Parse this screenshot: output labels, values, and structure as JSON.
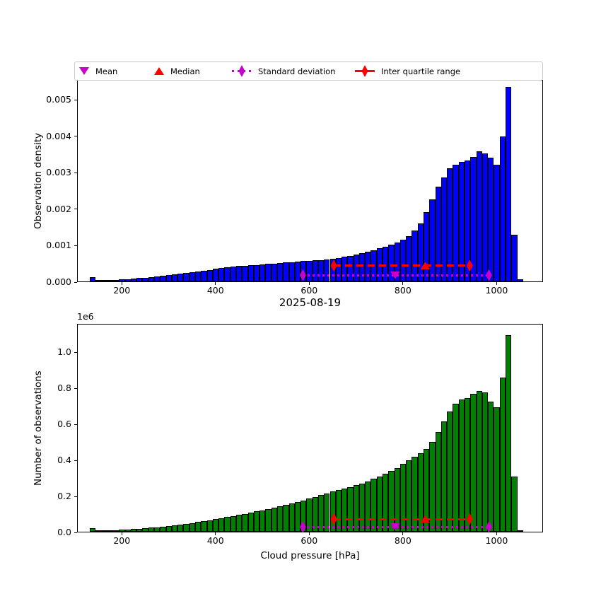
{
  "figure": {
    "title": "2025-08-19",
    "xlabel": "Cloud pressure [hPa]",
    "background": "#ffffff"
  },
  "colors": {
    "top_bar": "#0000ff",
    "bottom_bar": "#008000",
    "bar_edge": "#000000",
    "mean": "#c800c8",
    "median": "#ff0000",
    "std": "#c800c8",
    "iqr": "#ff0000"
  },
  "legend": {
    "items": [
      {
        "label": "Mean",
        "marker": "magenta-down-triangle"
      },
      {
        "label": "Median",
        "marker": "red-up-triangle"
      },
      {
        "label": "Standard deviation",
        "marker": "magenta-diamond-dotted-line"
      },
      {
        "label": "Inter quartile range",
        "marker": "red-diamond-solid-line"
      }
    ]
  },
  "chart_data": [
    {
      "type": "bar",
      "subtype": "histogram",
      "ylabel": "Observation density",
      "xlabel": "",
      "bar_color": "#0000ff",
      "bins": {
        "start": 130,
        "width": 12.5
      },
      "values": [
        0.00012,
        1e-05,
        2e-05,
        3e-05,
        4e-05,
        5e-05,
        6e-05,
        7e-05,
        9e-05,
        0.0001,
        0.00012,
        0.00014,
        0.00016,
        0.00018,
        0.0002,
        0.00022,
        0.00024,
        0.00026,
        0.00028,
        0.0003,
        0.00032,
        0.00034,
        0.00036,
        0.00038,
        0.0004,
        0.00042,
        0.00043,
        0.00044,
        0.00045,
        0.00046,
        0.00048,
        0.00049,
        0.0005,
        0.00052,
        0.00053,
        0.00055,
        0.00056,
        0.00057,
        0.00058,
        0.00059,
        0.00061,
        0.00062,
        0.00064,
        0.00067,
        0.0007,
        0.00074,
        0.00078,
        0.00082,
        0.00086,
        0.00091,
        0.00096,
        0.00101,
        0.00107,
        0.00115,
        0.00125,
        0.0014,
        0.0016,
        0.0019,
        0.00225,
        0.0026,
        0.00285,
        0.0031,
        0.0032,
        0.00328,
        0.00332,
        0.00342,
        0.00357,
        0.00352,
        0.0034,
        0.0032,
        0.00398,
        0.00533,
        0.00128,
        5e-05
      ],
      "xlim": [
        104.5,
        1099
      ],
      "ylim": [
        0,
        0.00555
      ],
      "xticks": [
        200,
        400,
        600,
        800,
        1000
      ],
      "yticks": [
        0,
        0.001,
        0.002,
        0.003,
        0.004,
        0.005
      ],
      "ytick_labels": [
        "0.000",
        "0.001",
        "0.002",
        "0.003",
        "0.004",
        "0.005"
      ],
      "annotations": {
        "mean": {
          "x": 782,
          "y": 0.00021
        },
        "median": {
          "x": 846,
          "y": 0.00047
        },
        "std": {
          "x": [
            585,
            982
          ],
          "y": 0.00021
        },
        "iqr": {
          "x": [
            651,
            941
          ],
          "y": 0.00047
        }
      }
    },
    {
      "type": "bar",
      "subtype": "histogram",
      "ylabel": "Number of observations",
      "xlabel": "Cloud pressure [hPa]",
      "offset_label": "1e6",
      "bar_color": "#008000",
      "bins": {
        "start": 130,
        "width": 12.5
      },
      "values": [
        0.02,
        0.003,
        0.004,
        0.006,
        0.008,
        0.01,
        0.012,
        0.014,
        0.016,
        0.019,
        0.022,
        0.025,
        0.028,
        0.032,
        0.036,
        0.04,
        0.044,
        0.049,
        0.054,
        0.059,
        0.064,
        0.069,
        0.075,
        0.081,
        0.087,
        0.093,
        0.099,
        0.105,
        0.112,
        0.119,
        0.126,
        0.133,
        0.141,
        0.149,
        0.157,
        0.165,
        0.174,
        0.183,
        0.193,
        0.203,
        0.213,
        0.222,
        0.23,
        0.238,
        0.247,
        0.257,
        0.268,
        0.28,
        0.293,
        0.307,
        0.322,
        0.337,
        0.355,
        0.375,
        0.398,
        0.415,
        0.435,
        0.458,
        0.5,
        0.555,
        0.61,
        0.665,
        0.71,
        0.735,
        0.742,
        0.765,
        0.78,
        0.773,
        0.72,
        0.69,
        0.855,
        1.09,
        0.306,
        0.009
      ],
      "values_unit": "1e6",
      "xlim": [
        104.5,
        1099
      ],
      "ylim": [
        0,
        1.157
      ],
      "xticks": [
        200,
        400,
        600,
        800,
        1000
      ],
      "yticks": [
        0,
        0.2,
        0.4,
        0.6,
        0.8,
        1.0
      ],
      "ytick_labels": [
        "0.0",
        "0.2",
        "0.4",
        "0.6",
        "0.8",
        "1.0"
      ],
      "annotations": {
        "mean": {
          "x": 782,
          "y": 0.035
        },
        "median": {
          "x": 846,
          "y": 0.078
        },
        "std": {
          "x": [
            585,
            982
          ],
          "y": 0.035
        },
        "iqr": {
          "x": [
            651,
            941
          ],
          "y": 0.078
        }
      }
    }
  ]
}
